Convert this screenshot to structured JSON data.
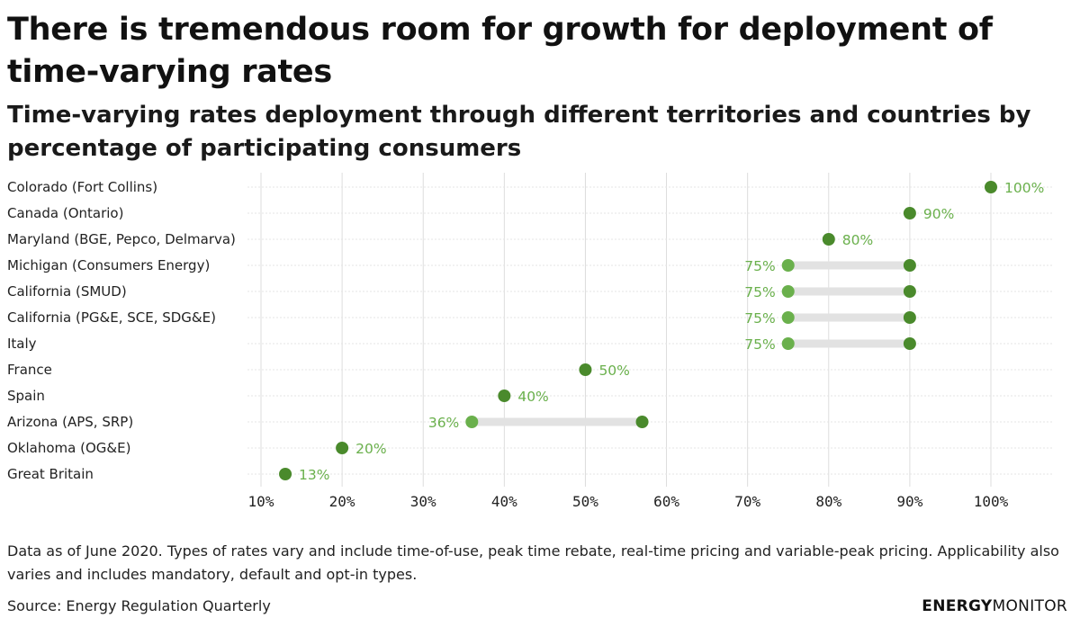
{
  "title": "There is tremendous room for growth for deployment of time-varying rates",
  "subtitle": "Time-varying rates deployment through different territories and countries by percentage of participating consumers",
  "note": "Data as of June 2020. Types of rates vary and include time-of-use, peak time rebate, real-time pricing and variable-peak pricing. Applicability also varies and includes mandatory, default and opt-in types.",
  "source": "Source: Energy Regulation Quarterly",
  "brand": {
    "part1": "ENERGY",
    "part2": "MONITOR"
  },
  "colors": {
    "dark": "#4a8a2c",
    "light": "#6ab04c",
    "range": "#e2e2e2",
    "grid": "#dddddd"
  },
  "chart_data": {
    "type": "dumbbell",
    "title": "Time-varying rates deployment through different territories and countries by percentage of participating consumers",
    "xlim": [
      10,
      100
    ],
    "xticks": [
      10,
      20,
      30,
      40,
      50,
      60,
      70,
      80,
      90,
      100
    ],
    "tick_suffix": "%",
    "rows": [
      {
        "label": "Colorado (Fort Collins)",
        "min": 100,
        "max": 100,
        "label_value": "100%"
      },
      {
        "label": "Canada (Ontario)",
        "min": 90,
        "max": 90,
        "label_value": "90%"
      },
      {
        "label": "Maryland (BGE, Pepco, Delmarva)",
        "min": 80,
        "max": 80,
        "label_value": "80%"
      },
      {
        "label": "Michigan (Consumers Energy)",
        "min": 75,
        "max": 90,
        "label_value": "75%"
      },
      {
        "label": "California (SMUD)",
        "min": 75,
        "max": 90,
        "label_value": "75%"
      },
      {
        "label": "California (PG&E, SCE, SDG&E)",
        "min": 75,
        "max": 90,
        "label_value": "75%"
      },
      {
        "label": "Italy",
        "min": 75,
        "max": 90,
        "label_value": "75%"
      },
      {
        "label": "France",
        "min": 50,
        "max": 50,
        "label_value": "50%"
      },
      {
        "label": "Spain",
        "min": 40,
        "max": 40,
        "label_value": "40%"
      },
      {
        "label": "Arizona (APS, SRP)",
        "min": 36,
        "max": 57,
        "label_value": "36%"
      },
      {
        "label": "Oklahoma (OG&E)",
        "min": 20,
        "max": 20,
        "label_value": "20%"
      },
      {
        "label": "Great Britain",
        "min": 13,
        "max": 13,
        "label_value": "13%"
      }
    ]
  }
}
